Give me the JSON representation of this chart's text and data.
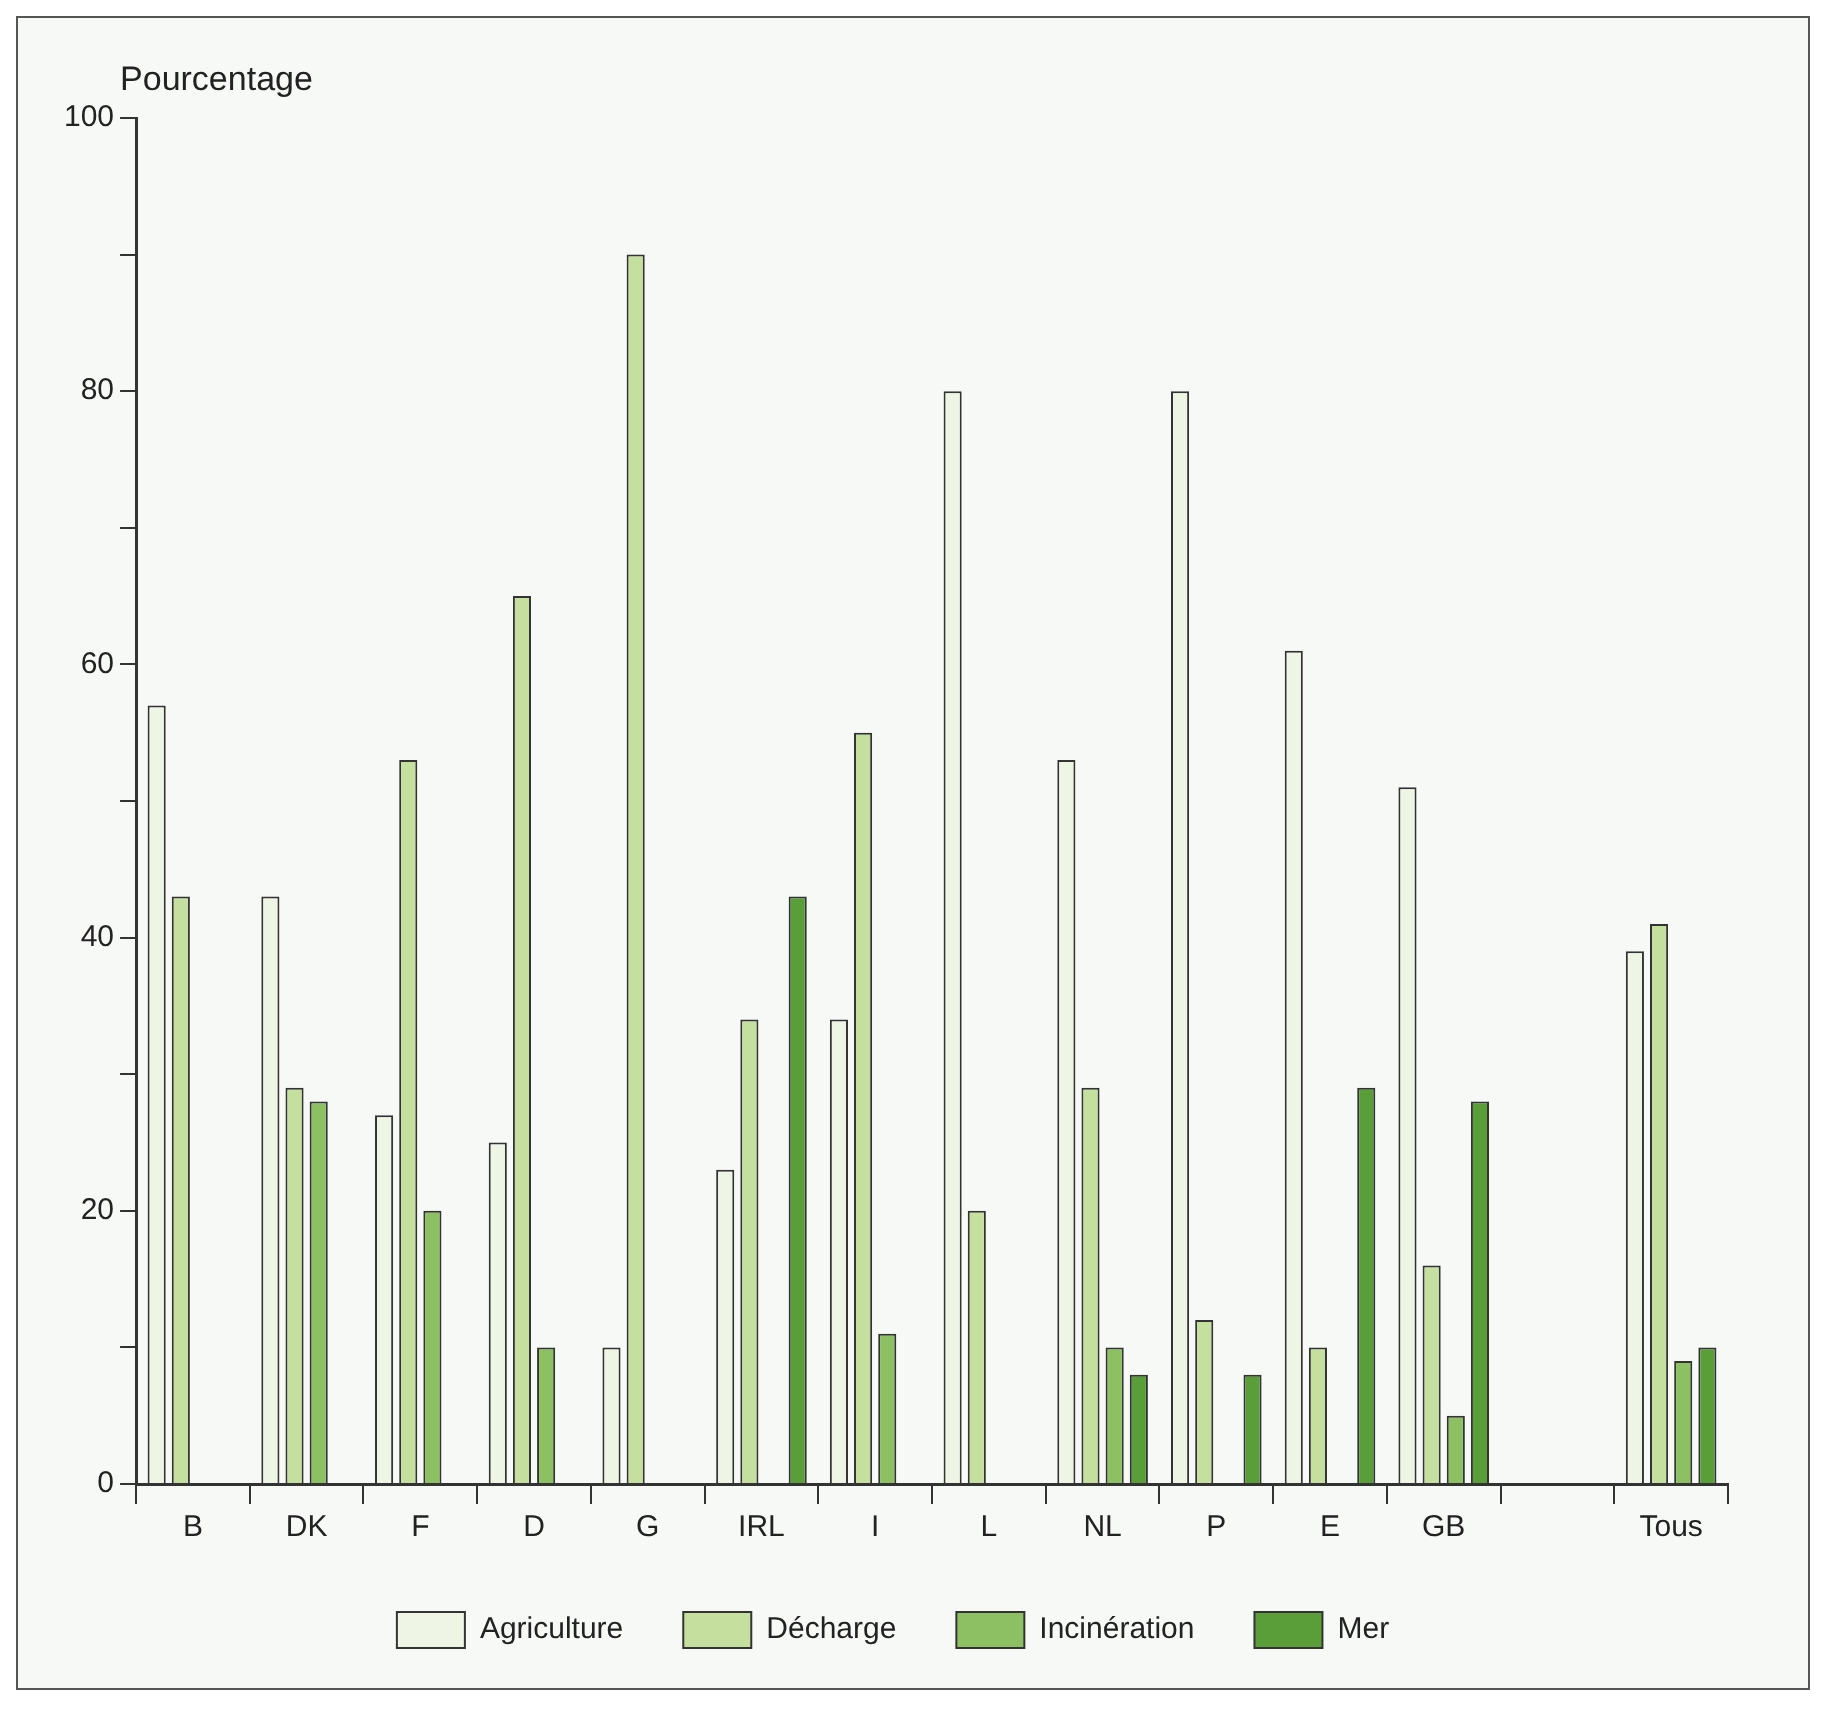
{
  "chart_data": {
    "type": "bar",
    "ylabel": "Pourcentage",
    "categories": [
      "B",
      "DK",
      "F",
      "D",
      "G",
      "IRL",
      "I",
      "L",
      "NL",
      "P",
      "E",
      "GB",
      null,
      "Tous"
    ],
    "series": [
      {
        "name": "Agriculture",
        "color": "#eef5e4",
        "values": [
          57,
          43,
          27,
          25,
          10,
          23,
          34,
          80,
          53,
          80,
          61,
          51,
          null,
          39
        ]
      },
      {
        "name": "Décharge",
        "color": "#c5e09e",
        "values": [
          43,
          29,
          53,
          65,
          90,
          34,
          55,
          20,
          29,
          12,
          10,
          16,
          null,
          41
        ]
      },
      {
        "name": "Incinération",
        "color": "#8cc063",
        "values": [
          0,
          28,
          20,
          10,
          0,
          0,
          11,
          0,
          10,
          0,
          0,
          5,
          null,
          9
        ]
      },
      {
        "name": "Mer",
        "color": "#5a9e3a",
        "values": [
          0,
          0,
          0,
          0,
          0,
          43,
          0,
          0,
          8,
          8,
          29,
          28,
          null,
          10
        ]
      }
    ],
    "ylim": [
      0,
      100
    ],
    "yticks": [
      0,
      {
        "value": 10,
        "label": null
      },
      20,
      {
        "value": 30,
        "label": null
      },
      40,
      {
        "value": 50,
        "label": null
      },
      60,
      {
        "value": 70,
        "label": null
      },
      80,
      {
        "value": 90,
        "label": null
      },
      100
    ],
    "grid": false,
    "legend": "bottom"
  }
}
